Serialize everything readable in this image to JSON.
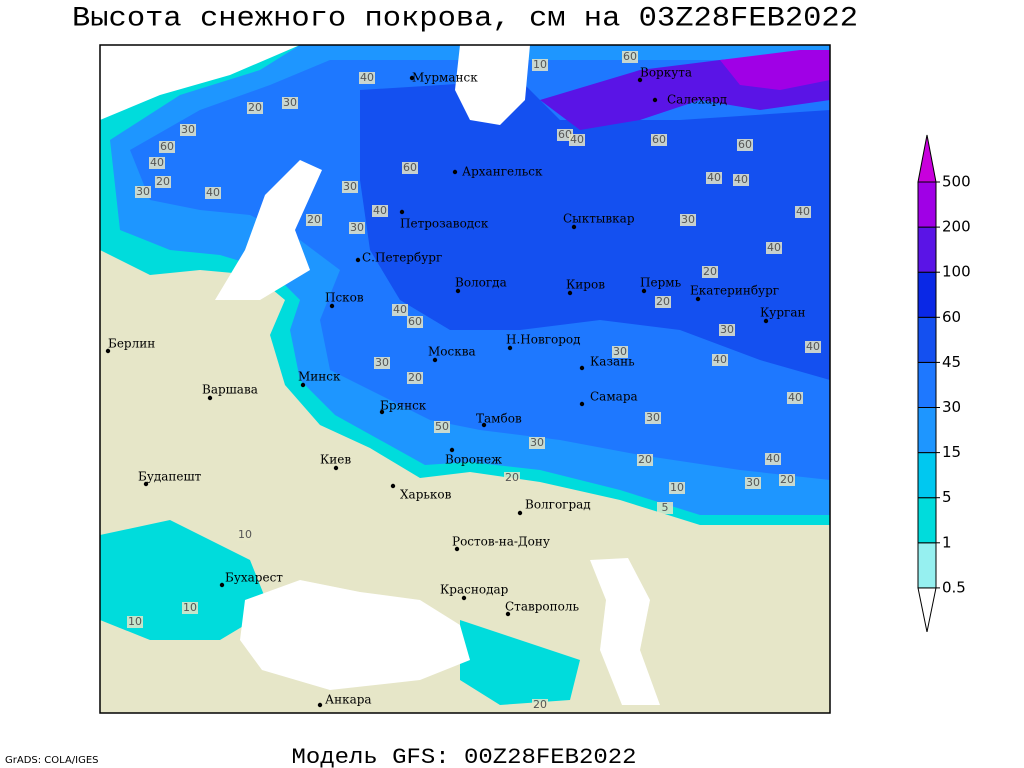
{
  "title": "Высота снежного покрова, см на 03Z28FEB2022",
  "subtitle": "Модель GFS: 00Z28FEB2022",
  "credit": "GrADS: COLA/IGES",
  "legend": {
    "levels": [
      0.5,
      1,
      5,
      15,
      30,
      45,
      60,
      100,
      200,
      500
    ],
    "colors": [
      "#ffffff",
      "#96f0f0",
      "#00dcdc",
      "#00c8f0",
      "#1e96ff",
      "#1e78ff",
      "#1450f0",
      "#0a28e6",
      "#5a14e6",
      "#a000e6",
      "#c800dc"
    ]
  },
  "cities": [
    "Мурманск",
    "Воркута",
    "Салехард",
    "Архангельск",
    "Петрозаводск",
    "С.Петербург",
    "Сыктывкар",
    "Киров",
    "Пермь",
    "Екатеринбург",
    "Курган",
    "Вологда",
    "Псков",
    "Н.Новгород",
    "Казань",
    "Москва",
    "Минск",
    "Самара",
    "Брянск",
    "Тамбов",
    "Берлин",
    "Варшава",
    "Воронеж",
    "Киев",
    "Харьков",
    "Будапешт",
    "Волгоград",
    "Ростов-на-Дону",
    "Бухарест",
    "Краснодар",
    "Ставрополь",
    "Анкара"
  ],
  "contour_labels": [
    60,
    10,
    40,
    30,
    20,
    30,
    60,
    40,
    20,
    30,
    40,
    30,
    20,
    30,
    40,
    60,
    40,
    60,
    30,
    20,
    50,
    30,
    20,
    10,
    30,
    20,
    40,
    40,
    30,
    40,
    40,
    40,
    40,
    40,
    40,
    60,
    60,
    60,
    40,
    30,
    20,
    20,
    30,
    30,
    10,
    10,
    10,
    20,
    5,
    20
  ]
}
